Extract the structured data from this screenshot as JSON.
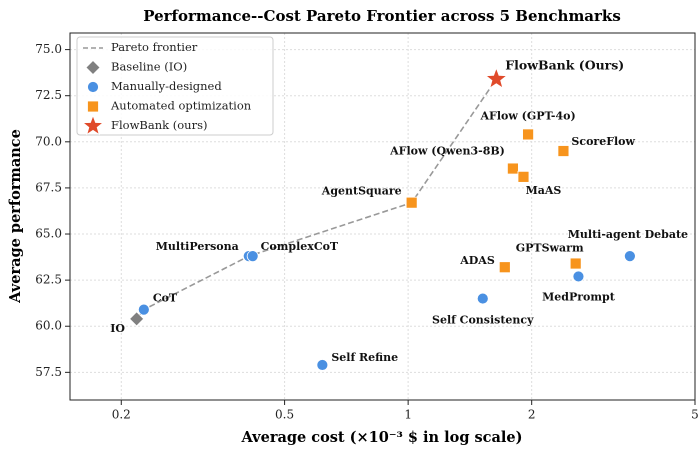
{
  "chart_data": {
    "type": "scatter",
    "title": "Performance--Cost Pareto Frontier across 5 Benchmarks",
    "x_label": "Average cost (×10⁻³ $ in log scale)",
    "y_label": "Average performance",
    "xscale": "log",
    "xlim": [
      0.15,
      5
    ],
    "ylim": [
      56.0,
      75.9
    ],
    "xticks": [
      0.2,
      0.5,
      1,
      2,
      5
    ],
    "yticks": [
      57.5,
      {
        "value": 60,
        "label": "60.0"
      },
      62.5,
      {
        "value": 65,
        "label": "65.0"
      },
      67.5,
      {
        "value": 70,
        "label": "70.0"
      },
      72.5,
      {
        "value": 75,
        "label": "75.0"
      }
    ],
    "grid": true,
    "legend": "upper left",
    "series": [
      {
        "name": "Pareto frontier",
        "type": "line",
        "color": "#999999",
        "x": [
          0.218,
          0.227,
          0.409,
          1.02,
          1.64
        ],
        "values": [
          60.4,
          60.9,
          63.8,
          66.7,
          73.4
        ]
      },
      {
        "name": "Baseline (IO)",
        "marker": "diamond",
        "color": "#808080",
        "x": [
          0.218
        ],
        "values": [
          60.4
        ],
        "labels": [
          "IO"
        ]
      },
      {
        "name": "Manually-designed",
        "marker": "circle",
        "color": "#4a90e2",
        "x": [
          0.227,
          0.409,
          0.418,
          0.618,
          1.52,
          2.6,
          3.47
        ],
        "values": [
          60.9,
          63.8,
          63.8,
          57.9,
          61.5,
          62.7,
          63.8
        ],
        "labels": [
          "CoT",
          "MultiPersona",
          "ComplexCoT",
          "Self Refine",
          "Self Consistency",
          "MedPrompt",
          "Multi-agent Debate"
        ]
      },
      {
        "name": "Automated optimization",
        "marker": "square",
        "color": "#f7941d",
        "x": [
          1.02,
          1.72,
          2.56,
          1.96,
          1.8,
          1.91,
          2.39
        ],
        "values": [
          66.7,
          63.2,
          63.4,
          70.4,
          68.55,
          68.1,
          69.5
        ],
        "labels": [
          "AgentSquare",
          "ADAS",
          "GPTSwarm",
          "AFlow (GPT-4o)",
          "AFlow (Qwen3-8B)",
          "MaAS",
          "ScoreFlow"
        ]
      },
      {
        "name": "FlowBank (ours)",
        "marker": "star",
        "color": "#e04a2a",
        "x": [
          1.64
        ],
        "values": [
          73.4
        ],
        "labels": [
          "FlowBank (Ours)"
        ],
        "label_color": "#c0391b"
      }
    ]
  }
}
